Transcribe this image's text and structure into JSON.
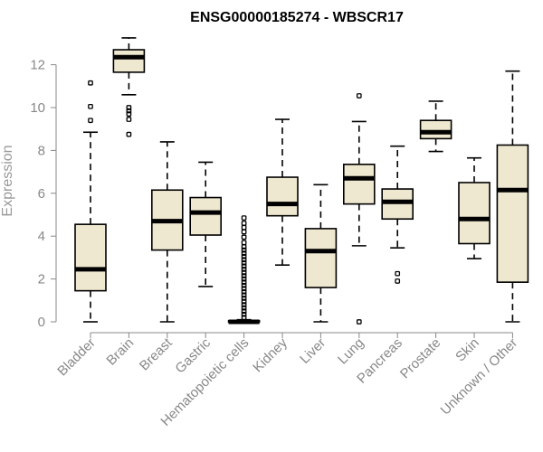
{
  "chart_data": {
    "type": "boxplot",
    "title": "ENSG00000185274 - WBSCR17",
    "xlabel": "",
    "ylabel": "Expression",
    "ylim": [
      0,
      13.5
    ],
    "yticks": [
      0,
      2,
      4,
      6,
      8,
      10,
      12
    ],
    "grid": false,
    "box_color": "#efe8d0",
    "categories": [
      "Bladder",
      "Brain",
      "Breast",
      "Gastric",
      "Hematopoietic cells",
      "Kidney",
      "Liver",
      "Lung",
      "Pancreas",
      "Prostate",
      "Skin",
      "Unknown / Other"
    ],
    "boxes": [
      {
        "label": "Bladder",
        "whisker_low": 0.0,
        "q1": 1.45,
        "median": 2.45,
        "q3": 4.55,
        "whisker_high": 8.85,
        "outliers": [
          9.4,
          10.05,
          11.15
        ]
      },
      {
        "label": "Brain",
        "whisker_low": 10.6,
        "q1": 11.65,
        "median": 12.35,
        "q3": 12.7,
        "whisker_high": 13.25,
        "outliers": [
          8.75,
          9.45,
          9.7,
          9.85,
          10.0
        ]
      },
      {
        "label": "Breast",
        "whisker_low": 0.0,
        "q1": 3.35,
        "median": 4.7,
        "q3": 6.15,
        "whisker_high": 8.4,
        "outliers": []
      },
      {
        "label": "Gastric",
        "whisker_low": 1.65,
        "q1": 4.05,
        "median": 5.1,
        "q3": 5.8,
        "whisker_high": 7.45,
        "outliers": []
      },
      {
        "label": "Hematopoietic cells",
        "whisker_low": 0.0,
        "q1": 0.0,
        "median": 0.0,
        "q3": 0.05,
        "whisker_high": 0.1,
        "outliers": [
          0.2,
          0.35,
          0.5,
          0.65,
          0.8,
          0.95,
          1.1,
          1.25,
          1.4,
          1.55,
          1.7,
          1.85,
          2.0,
          2.15,
          2.3,
          2.45,
          2.6,
          2.75,
          2.9,
          3.05,
          3.2,
          3.35,
          3.5,
          3.7,
          3.95,
          4.2,
          4.4,
          4.6,
          4.85
        ]
      },
      {
        "label": "Kidney",
        "whisker_low": 2.65,
        "q1": 4.95,
        "median": 5.5,
        "q3": 6.75,
        "whisker_high": 9.45,
        "outliers": []
      },
      {
        "label": "Liver",
        "whisker_low": 0.0,
        "q1": 1.6,
        "median": 3.3,
        "q3": 4.35,
        "whisker_high": 6.4,
        "outliers": []
      },
      {
        "label": "Lung",
        "whisker_low": 3.55,
        "q1": 5.5,
        "median": 6.7,
        "q3": 7.35,
        "whisker_high": 9.35,
        "outliers": [
          0.0,
          10.55
        ]
      },
      {
        "label": "Pancreas",
        "whisker_low": 3.45,
        "q1": 4.8,
        "median": 5.6,
        "q3": 6.2,
        "whisker_high": 8.2,
        "outliers": [
          1.9,
          2.25
        ]
      },
      {
        "label": "Prostate",
        "whisker_low": 7.95,
        "q1": 8.55,
        "median": 8.85,
        "q3": 9.4,
        "whisker_high": 10.3,
        "outliers": []
      },
      {
        "label": "Skin",
        "whisker_low": 2.95,
        "q1": 3.65,
        "median": 4.8,
        "q3": 6.5,
        "whisker_high": 7.65,
        "outliers": []
      },
      {
        "label": "Unknown / Other",
        "whisker_low": 0.0,
        "q1": 1.85,
        "median": 6.15,
        "q3": 8.25,
        "whisker_high": 11.7,
        "outliers": []
      }
    ]
  }
}
